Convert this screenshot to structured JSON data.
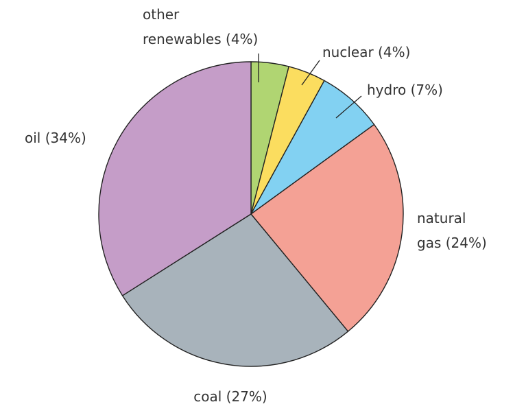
{
  "chart_data": {
    "type": "pie",
    "start": "12 o'clock",
    "direction": "clockwise",
    "slices": [
      {
        "label_lines": [
          "other",
          "renewables (4%)"
        ],
        "value": 4,
        "color": "#b0d572"
      },
      {
        "label_lines": [
          "nuclear (4%)"
        ],
        "value": 4,
        "color": "#fbdd5f"
      },
      {
        "label_lines": [
          "hydro (7%)"
        ],
        "value": 7,
        "color": "#82d1f2"
      },
      {
        "label_lines": [
          "natural",
          "gas (24%)"
        ],
        "value": 24,
        "color": "#f4a195"
      },
      {
        "label_lines": [
          "coal (27%)"
        ],
        "value": 27,
        "color": "#a8b3bb"
      },
      {
        "label_lines": [
          "oil (34%)"
        ],
        "value": 34,
        "color": "#c59dc8"
      }
    ]
  }
}
